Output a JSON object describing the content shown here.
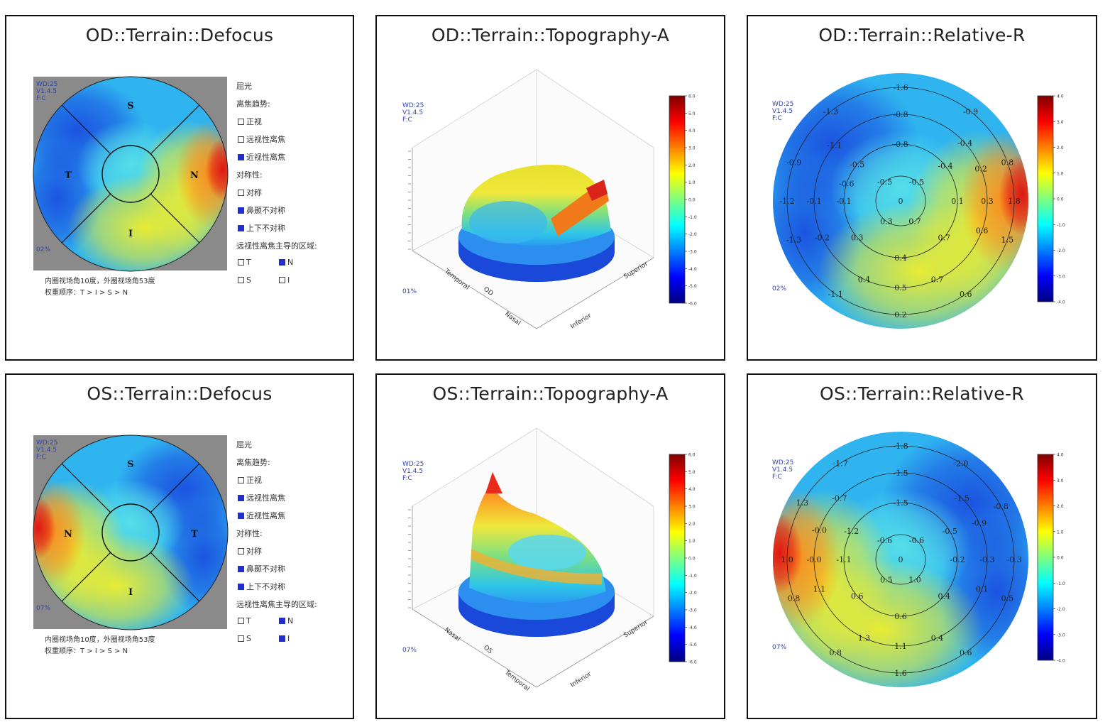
{
  "colors": {
    "scale": [
      "#00007f",
      "#0000ff",
      "#007fff",
      "#00ffff",
      "#7fff7f",
      "#ffff00",
      "#ff7f00",
      "#ff0000",
      "#7f0000"
    ],
    "frame": "#111111",
    "axis_blue": "#3344aa"
  },
  "panels": [
    {
      "id": "od-defocus",
      "title": "OD::Terrain::Defocus",
      "kind": "defocus",
      "eye": "OD",
      "sectors": {
        "top": "S",
        "left": "T",
        "right": "N",
        "bottom": "I"
      },
      "badge_tl": "WD:25\nV1.4.5\nF:C",
      "badge_bl": "02%",
      "legend": [
        {
          "label": "屈光",
          "box": null
        },
        {
          "label": "离焦趋势:",
          "box": null
        },
        {
          "label": "正视",
          "box": false
        },
        {
          "label": "远视性离焦",
          "box": false
        },
        {
          "label": "近视性离焦",
          "box": true
        },
        {
          "label": "对称性:",
          "box": null
        },
        {
          "label": "对称",
          "box": false
        },
        {
          "label": "鼻颞不对称",
          "box": true
        },
        {
          "label": "上下不对称",
          "box": true
        },
        {
          "label": "远视性离焦主导的区域:",
          "box": null
        }
      ],
      "region_boxes": [
        {
          "label": "T",
          "box": false
        },
        {
          "label": "N",
          "box": true
        },
        {
          "label": "S",
          "box": false
        },
        {
          "label": "I",
          "box": false
        }
      ],
      "notes": [
        "内圈视场角10度，外圈视场角53度",
        "权重顺序：T > I > S > N"
      ],
      "hot": {
        "side": "right"
      }
    },
    {
      "id": "od-topo",
      "title": "OD::Terrain::Topography-A",
      "kind": "topo",
      "eye": "OD",
      "badge_tl": "WD:25\nV1.4.5\nF:C",
      "badge_bl": "01%",
      "axis_labels": [
        "Temporal",
        "OD",
        "Nasal",
        "Inferior",
        "Superior"
      ],
      "colorbar_ticks": [
        "6.0",
        "5.0",
        "4.0",
        "3.0",
        "2.0",
        "1.0",
        "0.0",
        "-1.0",
        "-2.0",
        "-3.0",
        "-4.0",
        "-5.0",
        "-6.0"
      ]
    },
    {
      "id": "od-relative",
      "title": "OD::Terrain::Relative-R",
      "kind": "relative",
      "eye": "OD",
      "badge_tl": "WD:25\nV1.4.5\nF:C",
      "badge_bl": "02%",
      "colorbar_ticks": [
        "4.0",
        "3.0",
        "2.0",
        "1.0",
        "0.0",
        "-1.0",
        "-2.0",
        "-3.0",
        "-4.0"
      ],
      "ring_values": [
        {
          "v": "-1.6",
          "r": 4,
          "a": 90
        },
        {
          "v": "-1.3",
          "r": 4,
          "a": 128
        },
        {
          "v": "-0.9",
          "r": 4,
          "a": 52
        },
        {
          "v": "-0.8",
          "r": 3,
          "a": 90
        },
        {
          "v": "-1.1",
          "r": 3,
          "a": 140
        },
        {
          "v": "-0.4",
          "r": 3,
          "a": 42
        },
        {
          "v": "-0.8",
          "r": 2,
          "a": 90
        },
        {
          "v": "-0.5",
          "r": 2,
          "a": 140
        },
        {
          "v": "-0.4",
          "r": 2,
          "a": 38
        },
        {
          "v": "-0.9",
          "r": 4,
          "a": 160
        },
        {
          "v": "0.8",
          "r": 4,
          "a": 20
        },
        {
          "v": "-0.6",
          "r": 2,
          "a": 162
        },
        {
          "v": "0.2",
          "r": 3,
          "a": 22
        },
        {
          "v": "-0.5",
          "r": 1,
          "a": 130
        },
        {
          "v": "-0.5",
          "r": 1,
          "a": 50
        },
        {
          "v": "0",
          "r": 0,
          "a": 0
        },
        {
          "v": "-1.2",
          "r": 4,
          "a": 180
        },
        {
          "v": "-0.1",
          "r": 3,
          "a": 180
        },
        {
          "v": "-0.1",
          "r": 2,
          "a": 180
        },
        {
          "v": "0.1",
          "r": 2,
          "a": 0
        },
        {
          "v": "0.3",
          "r": 3,
          "a": 0
        },
        {
          "v": "1.8",
          "r": 4,
          "a": 0
        },
        {
          "v": "0.3",
          "r": 1,
          "a": 235
        },
        {
          "v": "0.7",
          "r": 1,
          "a": 305
        },
        {
          "v": "-0.2",
          "r": 3,
          "a": 205
        },
        {
          "v": "0.3",
          "r": 2,
          "a": 220
        },
        {
          "v": "0.7",
          "r": 2,
          "a": 320
        },
        {
          "v": "0.6",
          "r": 3,
          "a": 340
        },
        {
          "v": "-1.3",
          "r": 4,
          "a": 200
        },
        {
          "v": "1.5",
          "r": 4,
          "a": 340
        },
        {
          "v": "0.4",
          "r": 2,
          "a": 270
        },
        {
          "v": "0.4",
          "r": 3,
          "a": 245
        },
        {
          "v": "0.7",
          "r": 3,
          "a": 295
        },
        {
          "v": "0.5",
          "r": 3,
          "a": 270
        },
        {
          "v": "-1.1",
          "r": 4,
          "a": 235
        },
        {
          "v": "0.6",
          "r": 4,
          "a": 305
        },
        {
          "v": "0.2",
          "r": 4,
          "a": 270
        }
      ],
      "hot": {
        "side": "right"
      }
    },
    {
      "id": "os-defocus",
      "title": "OS::Terrain::Defocus",
      "kind": "defocus",
      "eye": "OS",
      "sectors": {
        "top": "S",
        "left": "N",
        "right": "T",
        "bottom": "I"
      },
      "badge_tl": "WD:25\nV1.4.5\nF:C",
      "badge_bl": "07%",
      "legend": [
        {
          "label": "屈光",
          "box": null
        },
        {
          "label": "离焦趋势:",
          "box": null
        },
        {
          "label": "正视",
          "box": false
        },
        {
          "label": "远视性离焦",
          "box": true
        },
        {
          "label": "近视性离焦",
          "box": true
        },
        {
          "label": "对称性:",
          "box": null
        },
        {
          "label": "对称",
          "box": false
        },
        {
          "label": "鼻颞不对称",
          "box": true
        },
        {
          "label": "上下不对称",
          "box": true
        },
        {
          "label": "远视性离焦主导的区域:",
          "box": null
        }
      ],
      "region_boxes": [
        {
          "label": "T",
          "box": false
        },
        {
          "label": "N",
          "box": true
        },
        {
          "label": "S",
          "box": false
        },
        {
          "label": "I",
          "box": true
        }
      ],
      "notes": [
        "内圈视场角10度，外圈视场角53度",
        "权重顺序：T > I > S > N"
      ],
      "hot": {
        "side": "left"
      }
    },
    {
      "id": "os-topo",
      "title": "OS::Terrain::Topography-A",
      "kind": "topo",
      "eye": "OS",
      "badge_tl": "WD:25\nV1.4.5\nF:C",
      "badge_bl": "07%",
      "axis_labels": [
        "Nasal",
        "OS",
        "Temporal",
        "Inferior",
        "Superior"
      ],
      "colorbar_ticks": [
        "6.0",
        "5.0",
        "4.0",
        "3.0",
        "2.0",
        "1.0",
        "0.0",
        "-1.0",
        "-2.0",
        "-3.0",
        "-4.0",
        "-5.0",
        "-6.0"
      ]
    },
    {
      "id": "os-relative",
      "title": "OS::Terrain::Relative-R",
      "kind": "relative",
      "eye": "OS",
      "badge_tl": "WD:25\nV1.4.5\nF:C",
      "badge_bl": "07%",
      "colorbar_ticks": [
        "4.0",
        "3.0",
        "2.0",
        "1.0",
        "0.0",
        "-1.0",
        "-2.0",
        "-3.0",
        "-4.0"
      ],
      "ring_values": [
        {
          "v": "-1.8",
          "r": 4,
          "a": 90
        },
        {
          "v": "-1.7",
          "r": 4,
          "a": 122
        },
        {
          "v": "-2.0",
          "r": 4,
          "a": 58
        },
        {
          "v": "-1.5",
          "r": 3,
          "a": 90
        },
        {
          "v": "-0.7",
          "r": 3,
          "a": 135
        },
        {
          "v": "-1.5",
          "r": 3,
          "a": 45
        },
        {
          "v": "-1.5",
          "r": 2,
          "a": 90
        },
        {
          "v": "1.3",
          "r": 4,
          "a": 150
        },
        {
          "v": "-0.8",
          "r": 4,
          "a": 28
        },
        {
          "v": "-0.0",
          "r": 3,
          "a": 160
        },
        {
          "v": "-1.2",
          "r": 2,
          "a": 150
        },
        {
          "v": "-0.5",
          "r": 2,
          "a": 30
        },
        {
          "v": "-0.9",
          "r": 3,
          "a": 25
        },
        {
          "v": "-0.6",
          "r": 1,
          "a": 130
        },
        {
          "v": "-0.6",
          "r": 1,
          "a": 50
        },
        {
          "v": "0",
          "r": 0,
          "a": 0
        },
        {
          "v": "1.0",
          "r": 4,
          "a": 180
        },
        {
          "v": "-0.0",
          "r": 3,
          "a": 180
        },
        {
          "v": "-1.1",
          "r": 2,
          "a": 180
        },
        {
          "v": "-0.2",
          "r": 2,
          "a": 0
        },
        {
          "v": "-0.3",
          "r": 3,
          "a": 0
        },
        {
          "v": "-0.3",
          "r": 4,
          "a": 0
        },
        {
          "v": "0.5",
          "r": 1,
          "a": 235
        },
        {
          "v": "1.0",
          "r": 1,
          "a": 305
        },
        {
          "v": "1.1",
          "r": 3,
          "a": 200
        },
        {
          "v": "0.6",
          "r": 2,
          "a": 220
        },
        {
          "v": "0.4",
          "r": 2,
          "a": 320
        },
        {
          "v": "0.1",
          "r": 3,
          "a": 340
        },
        {
          "v": "0.8",
          "r": 4,
          "a": 200
        },
        {
          "v": "0.5",
          "r": 4,
          "a": 340
        },
        {
          "v": "0.6",
          "r": 2,
          "a": 270
        },
        {
          "v": "1.3",
          "r": 3,
          "a": 245
        },
        {
          "v": "0.4",
          "r": 3,
          "a": 295
        },
        {
          "v": "1.1",
          "r": 3,
          "a": 270
        },
        {
          "v": "0.8",
          "r": 4,
          "a": 235
        },
        {
          "v": "0.6",
          "r": 4,
          "a": 305
        },
        {
          "v": "1.6",
          "r": 4,
          "a": 270
        }
      ],
      "hot": {
        "side": "left"
      }
    }
  ],
  "chart_data": [
    {
      "type": "heatmap",
      "title": "OD::Terrain::Defocus"
    },
    {
      "type": "heatmap",
      "title": "OD::Terrain::Topography-A"
    },
    {
      "type": "heatmap",
      "title": "OD::Terrain::Relative-R"
    },
    {
      "type": "heatmap",
      "title": "OS::Terrain::Defocus"
    },
    {
      "type": "heatmap",
      "title": "OS::Terrain::Topography-A"
    },
    {
      "type": "heatmap",
      "title": "OS::Terrain::Relative-R"
    }
  ]
}
